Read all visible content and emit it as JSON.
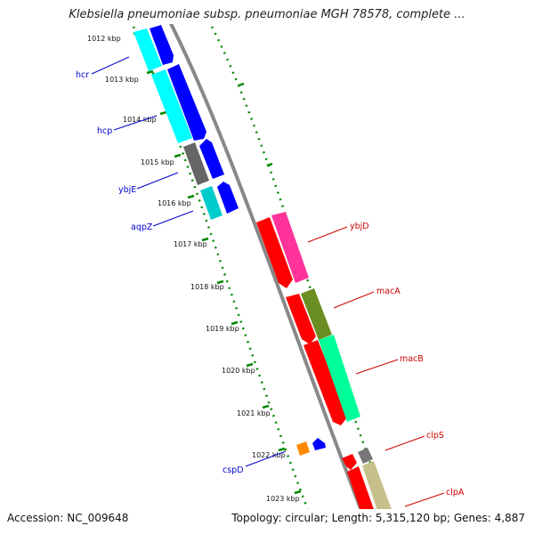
{
  "title": "Klebsiella pneumoniae subsp. pneumoniae MGH 78578, complete ...",
  "footer": {
    "accession": "Accession: NC_009648",
    "stats": "Topology: circular; Length: 5,315,120 bp; Genes: 4,887"
  },
  "ruler": {
    "labels": [
      "1012 kbp",
      "1013 kbp",
      "1014 kbp",
      "1015 kbp",
      "1016 kbp",
      "1017 kbp",
      "1018 kbp",
      "1019 kbp",
      "1020 kbp",
      "1021 kbp",
      "1022 kbp",
      "1023 kbp"
    ]
  },
  "genes": [
    {
      "label": "hcr",
      "strand": "left",
      "color": "#0000cc"
    },
    {
      "label": "hcp",
      "strand": "left",
      "color": "#0000cc"
    },
    {
      "label": "ybjE",
      "strand": "left",
      "color": "#0000cc"
    },
    {
      "label": "aqpZ",
      "strand": "left",
      "color": "#0000cc"
    },
    {
      "label": "ybjD",
      "strand": "right",
      "color": "#cc0000"
    },
    {
      "label": "macA",
      "strand": "right",
      "color": "#cc0000"
    },
    {
      "label": "macB",
      "strand": "right",
      "color": "#cc0000"
    },
    {
      "label": "clpS",
      "strand": "right",
      "color": "#cc0000"
    },
    {
      "label": "clpA",
      "strand": "right",
      "color": "#cc0000"
    },
    {
      "label": "cspD",
      "strand": "left",
      "color": "#0000cc"
    }
  ],
  "colors": {
    "forward_cds": "#ff0000",
    "reverse_cds": "#0000ff",
    "cyan_feature": "#00ffff",
    "pink_feature": "#ff3399",
    "olive_feature": "#6b8e23",
    "green_feature": "#00ff99",
    "gray_feature": "#777777",
    "tan_feature": "#c8c08a",
    "orange_feature": "#ff8800",
    "backbone": "#888888",
    "tick": "#008800"
  }
}
